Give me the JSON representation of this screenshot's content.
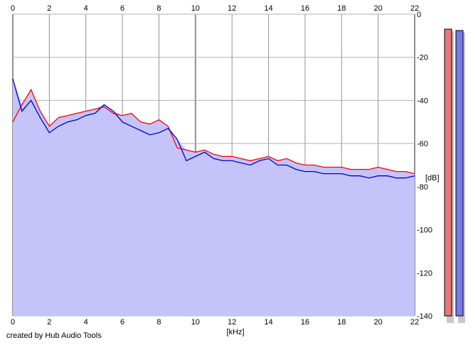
{
  "chart_data": {
    "type": "area",
    "xlabel": "[kHz]",
    "ylabel": "[dB]",
    "xlim": [
      0,
      22
    ],
    "ylim": [
      -140,
      0
    ],
    "x_ticks": [
      0,
      2,
      4,
      6,
      8,
      10,
      12,
      14,
      16,
      18,
      20,
      22
    ],
    "y_ticks": [
      0,
      -20,
      -40,
      -60,
      -80,
      -100,
      -120,
      -140
    ],
    "grid": true,
    "fill_color": "#c4c4fa",
    "series": [
      {
        "color": "#ff0000",
        "x": [
          0,
          0.5,
          1,
          1.5,
          2,
          2.5,
          3,
          3.5,
          4,
          4.5,
          5,
          5.5,
          6,
          6.5,
          7,
          7.5,
          8,
          8.5,
          9,
          9.5,
          10,
          10.5,
          11,
          11.5,
          12,
          12.5,
          13,
          13.5,
          14,
          14.5,
          15,
          15.5,
          16,
          16.5,
          17,
          17.5,
          18,
          18.5,
          19,
          19.5,
          20,
          20.5,
          21,
          21.5,
          22
        ],
        "values": [
          -50,
          -42,
          -35,
          -45,
          -52,
          -48,
          -47,
          -46,
          -45,
          -44,
          -43,
          -46,
          -47,
          -46,
          -50,
          -51,
          -49,
          -52,
          -62,
          -63,
          -64,
          -63,
          -65,
          -66,
          -66,
          -67,
          -68,
          -67,
          -66,
          -68,
          -67,
          -69,
          -70,
          -70,
          -71,
          -71,
          -71,
          -72,
          -72,
          -72,
          -71,
          -72,
          -73,
          -73,
          -74
        ]
      },
      {
        "color": "#0000c8",
        "x": [
          0,
          0.5,
          1,
          1.5,
          2,
          2.5,
          3,
          3.5,
          4,
          4.5,
          5,
          5.5,
          6,
          6.5,
          7,
          7.5,
          8,
          8.5,
          9,
          9.5,
          10,
          10.5,
          11,
          11.5,
          12,
          12.5,
          13,
          13.5,
          14,
          14.5,
          15,
          15.5,
          16,
          16.5,
          17,
          17.5,
          18,
          18.5,
          19,
          19.5,
          20,
          20.5,
          21,
          21.5,
          22
        ],
        "values": [
          -30,
          -45,
          -40,
          -48,
          -55,
          -52,
          -50,
          -49,
          -47,
          -46,
          -42,
          -45,
          -50,
          -52,
          -54,
          -56,
          -55,
          -53,
          -58,
          -68,
          -66,
          -64,
          -67,
          -68,
          -68,
          -69,
          -70,
          -68,
          -67,
          -70,
          -70,
          -72,
          -73,
          -73,
          -74,
          -74,
          -74,
          -75,
          -75,
          -76,
          -75,
          -75,
          -76,
          -76,
          -75
        ]
      }
    ]
  },
  "meters": [
    {
      "color": "#e87878"
    },
    {
      "color": "#7878e8"
    }
  ],
  "credit": "created by Hub Audio Tools"
}
